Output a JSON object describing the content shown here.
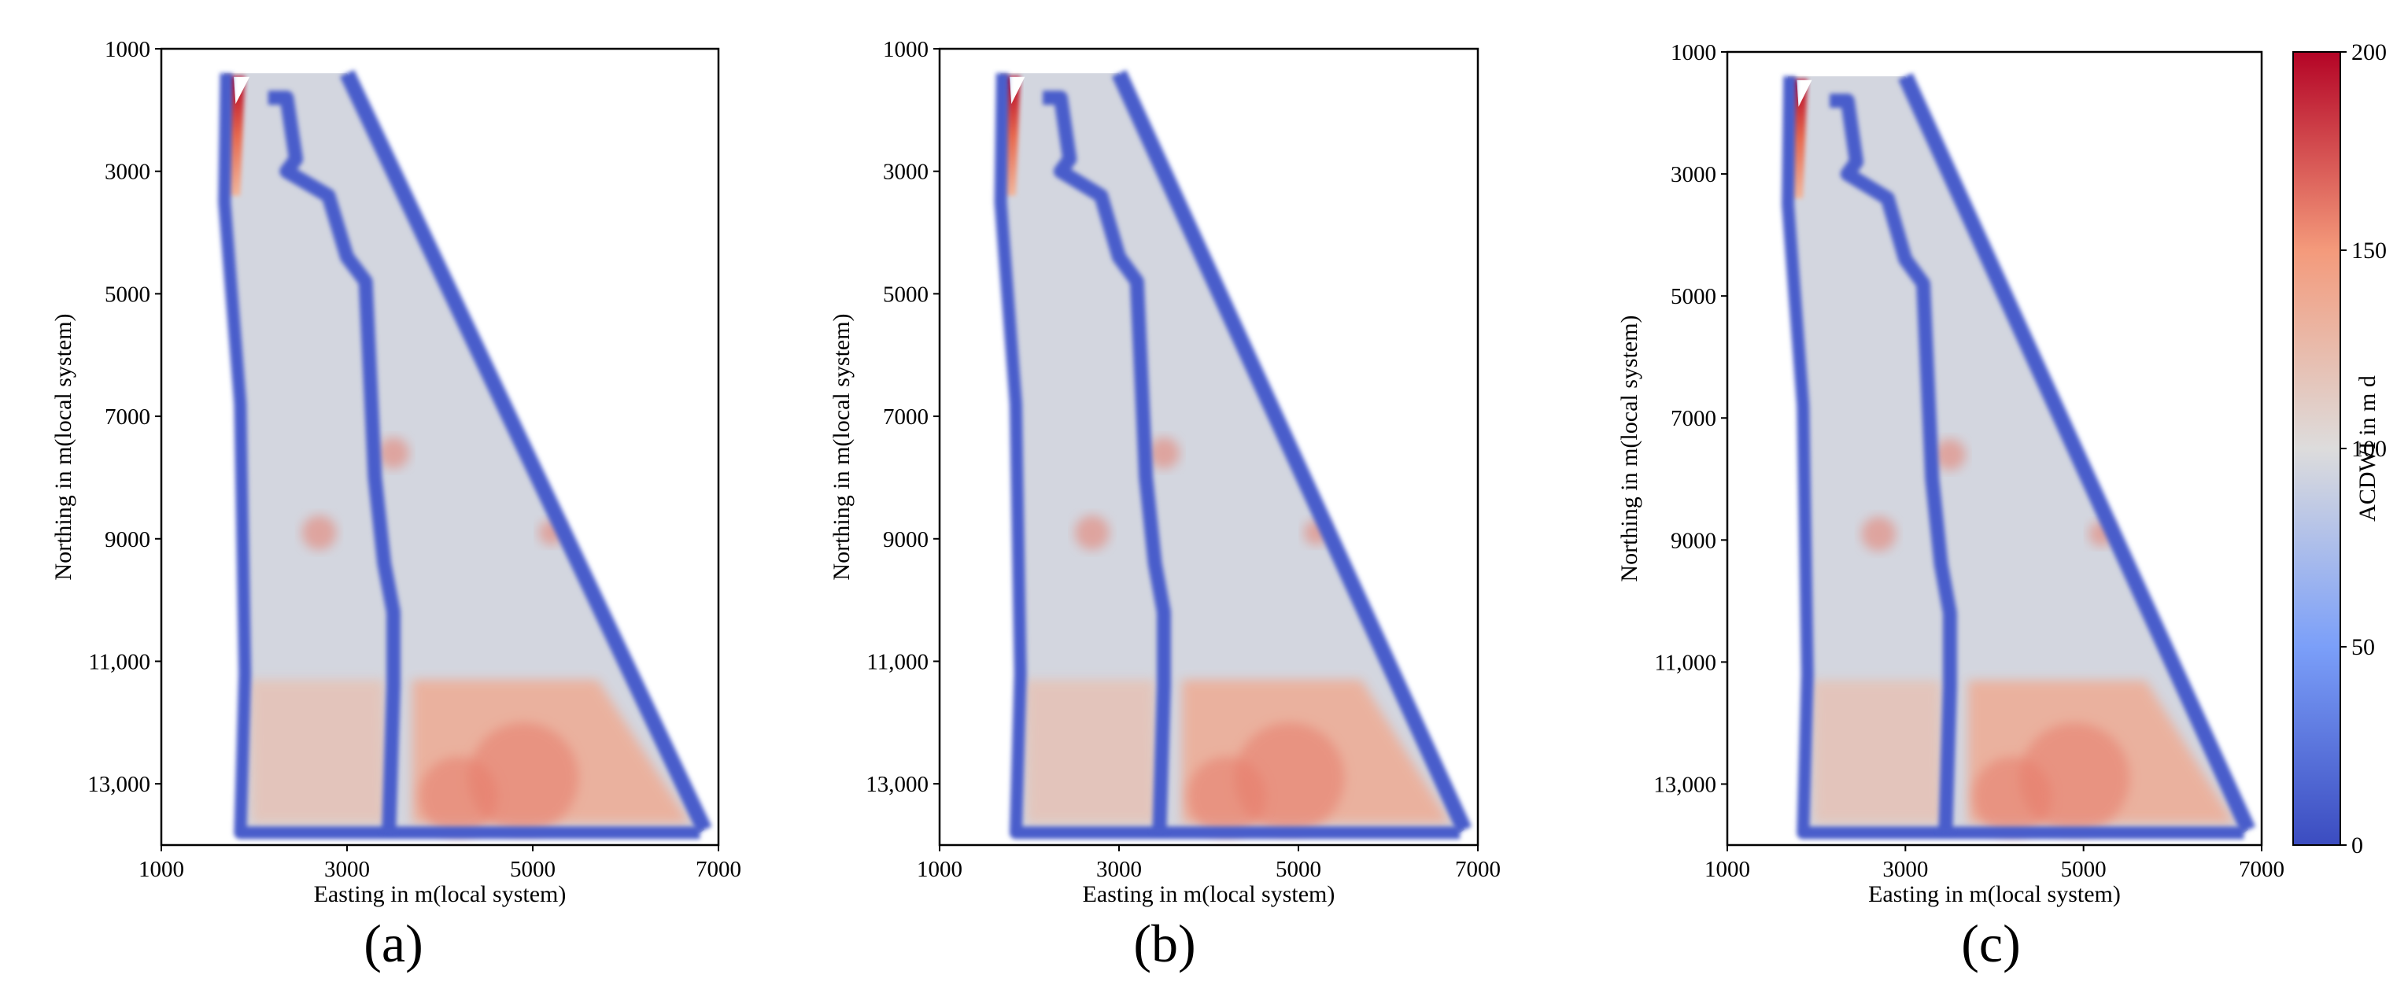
{
  "chart_data": {
    "type": "heatmap",
    "colormap": "coolwarm",
    "panels": [
      {
        "label": "(a)",
        "xlabel": "Easting in m(local system)",
        "ylabel": "Northing in m(local system)",
        "xlim": [
          1000,
          7000
        ],
        "ylim": [
          14000,
          1000
        ],
        "xticks": [
          "1000",
          "3000",
          "5000",
          "7000"
        ],
        "yticks": [
          "1000",
          "3000",
          "5000",
          "7000",
          "9000",
          "11,000",
          "13,000"
        ]
      },
      {
        "label": "(b)",
        "xlabel": "Easting in m(local system)",
        "ylabel": "Northing in m(local system)",
        "xlim": [
          1000,
          7000
        ],
        "ylim": [
          14000,
          1000
        ],
        "xticks": [
          "1000",
          "3000",
          "5000",
          "7000"
        ],
        "yticks": [
          "1000",
          "3000",
          "5000",
          "7000",
          "9000",
          "11,000",
          "13,000"
        ]
      },
      {
        "label": "(c)",
        "xlabel": "Easting in m(local system)",
        "ylabel": "Northing in m(local system)",
        "xlim": [
          1000,
          7000
        ],
        "ylim": [
          14000,
          1000
        ],
        "xticks": [
          "1000",
          "3000",
          "5000",
          "7000"
        ],
        "yticks": [
          "1000",
          "3000",
          "5000",
          "7000",
          "9000",
          "11,000",
          "13,000"
        ]
      }
    ],
    "colorbar": {
      "label": "ACDWI in m d",
      "range": [
        0,
        200
      ],
      "ticks": [
        "0",
        "50",
        "100",
        "150",
        "200"
      ]
    },
    "field_values": {
      "boundary_band": 10,
      "interior_background": 95,
      "lower_block_values": [
        120,
        135
      ],
      "hotspot_values": [
        150,
        160
      ],
      "top_left_corner_max": 200
    }
  }
}
